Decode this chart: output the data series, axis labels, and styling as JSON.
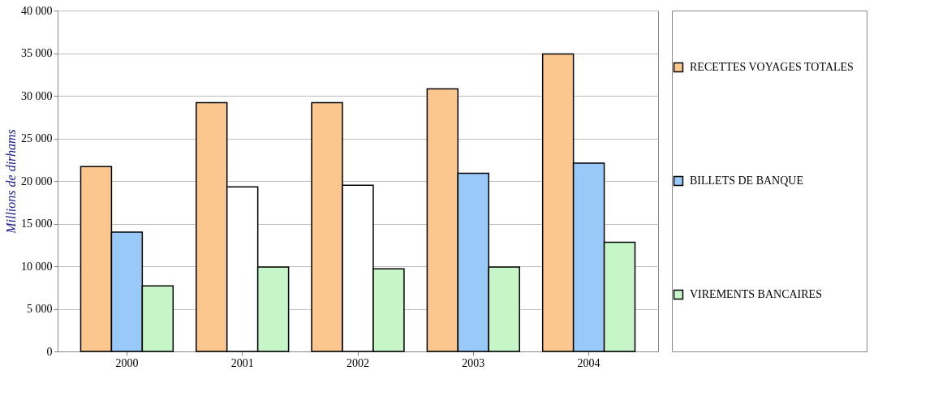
{
  "chart_data": {
    "type": "bar",
    "ylabel": "Millions de dirhams",
    "categories": [
      "2000",
      "2001",
      "2002",
      "2003",
      "2004"
    ],
    "series": [
      {
        "name": "RECETTES VOYAGES TOTALES",
        "color": "#fcc68f",
        "values": [
          21700,
          29200,
          29200,
          30800,
          34900
        ]
      },
      {
        "name": "BILLETS DE BANQUE",
        "color": "#99c9f8",
        "colors": [
          "#99c9f8",
          "#ffffff",
          "#ffffff",
          "#99c9f8",
          "#99c9f8"
        ],
        "values": [
          14000,
          19300,
          19500,
          20900,
          22100
        ]
      },
      {
        "name": "VIREMENTS BANCAIRES",
        "color": "#c6f5c8",
        "values": [
          7700,
          9900,
          9700,
          9900,
          12800
        ]
      }
    ],
    "ylim": [
      0,
      40000
    ],
    "yticks": [
      {
        "value": 0,
        "label": "0"
      },
      {
        "value": 5000,
        "label": "5 000"
      },
      {
        "value": 10000,
        "label": "10 000"
      },
      {
        "value": 15000,
        "label": "15 000"
      },
      {
        "value": 20000,
        "label": "20 000"
      },
      {
        "value": 25000,
        "label": "25 000"
      },
      {
        "value": 30000,
        "label": "30 000"
      },
      {
        "value": 35000,
        "label": "35 000"
      },
      {
        "value": 40000,
        "label": "40 000"
      }
    ],
    "grid": "y",
    "legend": "right"
  }
}
